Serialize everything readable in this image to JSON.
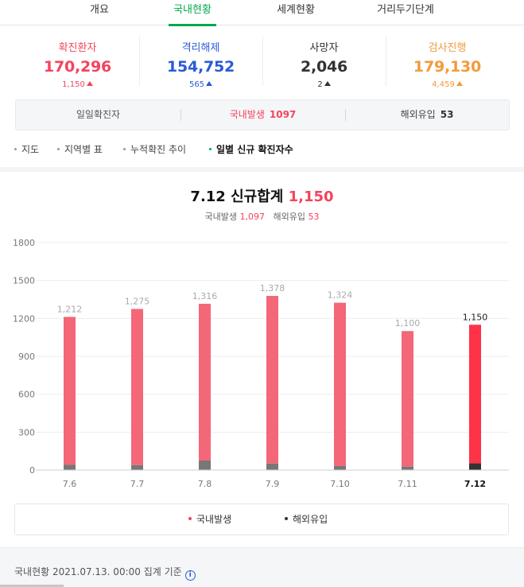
{
  "tabs": [
    {
      "label": "개요",
      "active": false
    },
    {
      "label": "국내현황",
      "active": true
    },
    {
      "label": "세계현황",
      "active": false
    },
    {
      "label": "거리두기단계",
      "active": false
    }
  ],
  "stats": [
    {
      "label": "확진환자",
      "value": "170,296",
      "delta": "1,150",
      "color": "#f5435c"
    },
    {
      "label": "격리해제",
      "value": "154,752",
      "delta": "565",
      "color": "#2a5bd7"
    },
    {
      "label": "사망자",
      "value": "2,046",
      "delta": "2",
      "color": "#333333"
    },
    {
      "label": "검사진행",
      "value": "179,130",
      "delta": "4,459",
      "color": "#f39a3b"
    }
  ],
  "daily": {
    "label": "일일확진자",
    "domestic_label": "국내발생",
    "domestic_value": "1097",
    "overseas_label": "해외유입",
    "overseas_value": "53"
  },
  "submenu": [
    {
      "label": "지도",
      "active": false
    },
    {
      "label": "지역별 표",
      "active": false
    },
    {
      "label": "누적확진 추이",
      "active": false
    },
    {
      "label": "일별 신규 확진자수",
      "active": true
    }
  ],
  "chart_header": {
    "title": "7.12 신규합계",
    "total": "1,150",
    "domestic_label": "국내발생",
    "domestic_value": "1,097",
    "overseas_label": "해외유입",
    "overseas_value": "53"
  },
  "chart_data": {
    "type": "bar",
    "categories": [
      "7.6",
      "7.7",
      "7.8",
      "7.9",
      "7.10",
      "7.11",
      "7.12"
    ],
    "totals": [
      1212,
      1275,
      1316,
      1378,
      1324,
      1100,
      1150
    ],
    "total_labels": [
      "1,212",
      "1,275",
      "1,316",
      "1,378",
      "1,324",
      "1,100",
      "1,150"
    ],
    "series": [
      {
        "name": "국내발생",
        "values": [
          1171,
          1236,
          1240,
          1327,
          1292,
          1073,
          1097
        ],
        "color": "#f36778"
      },
      {
        "name": "해외유입",
        "values": [
          41,
          39,
          76,
          51,
          32,
          27,
          53
        ],
        "color": "#777777"
      }
    ],
    "highlight_index": 6,
    "highlight_color": "#ff3348",
    "highlight_overseas_color": "#333333",
    "yticks": [
      "1800",
      "1500",
      "1200",
      "900",
      "600",
      "300",
      "0"
    ],
    "ylim": [
      0,
      1800
    ]
  },
  "legend": [
    {
      "label": "국내발생",
      "color": "#f5435c"
    },
    {
      "label": "해외유입",
      "color": "#333333"
    }
  ],
  "footer": {
    "text": "국내현황 2021.07.13. 00:00 집계 기준",
    "info_icon": "i"
  }
}
